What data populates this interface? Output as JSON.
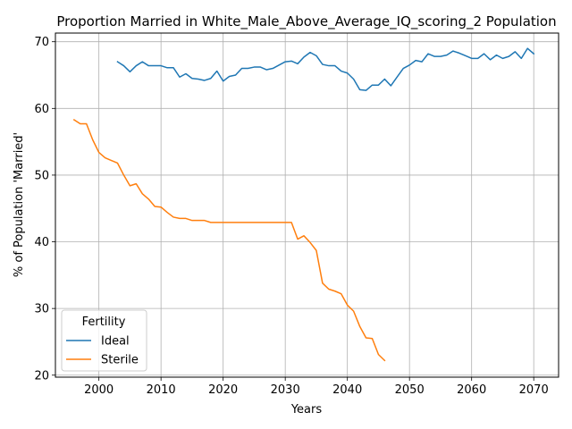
{
  "chart_data": {
    "type": "line",
    "title": "Proportion Married in White_Male_Above_Average_IQ_scoring_2 Population",
    "xlabel": "Years",
    "ylabel": "% of Population 'Married'",
    "xlim": [
      1993,
      2074
    ],
    "ylim": [
      19.7,
      71.3
    ],
    "xticks": [
      2000,
      2010,
      2020,
      2030,
      2040,
      2050,
      2060,
      2070
    ],
    "yticks": [
      20,
      30,
      40,
      50,
      60,
      70
    ],
    "grid": true,
    "legend": {
      "title": "Fertility",
      "placement": "bottom-left"
    },
    "series": [
      {
        "name": "Ideal",
        "color": "#1f77b4",
        "x": [
          2003,
          2004,
          2005,
          2006,
          2007,
          2008,
          2009,
          2010,
          2011,
          2012,
          2013,
          2014,
          2015,
          2016,
          2017,
          2018,
          2019,
          2020,
          2021,
          2022,
          2023,
          2024,
          2025,
          2026,
          2027,
          2028,
          2029,
          2030,
          2031,
          2032,
          2033,
          2034,
          2035,
          2036,
          2037,
          2038,
          2039,
          2040,
          2041,
          2042,
          2043,
          2044,
          2045,
          2046,
          2047,
          2048,
          2049,
          2050,
          2051,
          2052,
          2053,
          2054,
          2055,
          2056,
          2057,
          2058,
          2059,
          2060,
          2061,
          2062,
          2063,
          2064,
          2065,
          2066,
          2067,
          2068,
          2069,
          2070
        ],
        "values": [
          67.0,
          66.4,
          65.5,
          66.4,
          67.0,
          66.4,
          66.4,
          66.4,
          66.1,
          66.1,
          64.7,
          65.2,
          64.5,
          64.4,
          64.2,
          64.5,
          65.6,
          64.1,
          64.8,
          65.0,
          66.0,
          66.0,
          66.2,
          66.2,
          65.8,
          66.0,
          66.5,
          67.0,
          67.1,
          66.7,
          67.7,
          68.4,
          67.9,
          66.6,
          66.4,
          66.4,
          65.6,
          65.3,
          64.4,
          62.8,
          62.7,
          63.5,
          63.5,
          64.4,
          63.4,
          64.7,
          66.0,
          66.5,
          67.2,
          67.0,
          68.2,
          67.8,
          67.8,
          68.0,
          68.6,
          68.3,
          67.9,
          67.5,
          67.5,
          68.2,
          67.3,
          68.0,
          67.5,
          67.8,
          68.5,
          67.5,
          69.0,
          68.2
        ]
      },
      {
        "name": "Sterile",
        "color": "#ff7f0e",
        "x": [
          1996,
          1997,
          1998,
          1999,
          2000,
          2001,
          2002,
          2003,
          2004,
          2005,
          2006,
          2007,
          2008,
          2009,
          2010,
          2011,
          2012,
          2013,
          2014,
          2015,
          2016,
          2017,
          2018,
          2019,
          2020,
          2021,
          2022,
          2023,
          2024,
          2025,
          2026,
          2027,
          2028,
          2029,
          2030,
          2031,
          2032,
          2033,
          2034,
          2035,
          2036,
          2037,
          2038,
          2039,
          2040,
          2041,
          2042,
          2043,
          2044,
          2045,
          2046
        ],
        "values": [
          58.3,
          57.7,
          57.7,
          55.3,
          53.4,
          52.6,
          52.2,
          51.8,
          50.0,
          48.4,
          48.7,
          47.2,
          46.4,
          45.3,
          45.2,
          44.4,
          43.7,
          43.5,
          43.5,
          43.2,
          43.2,
          43.2,
          42.9,
          42.9,
          42.9,
          42.9,
          42.9,
          42.9,
          42.9,
          42.9,
          42.9,
          42.9,
          42.9,
          42.9,
          42.9,
          42.9,
          40.4,
          40.9,
          39.9,
          38.7,
          33.8,
          32.9,
          32.6,
          32.2,
          30.5,
          29.6,
          27.3,
          25.6,
          25.5,
          23.1,
          22.2
        ]
      }
    ]
  }
}
